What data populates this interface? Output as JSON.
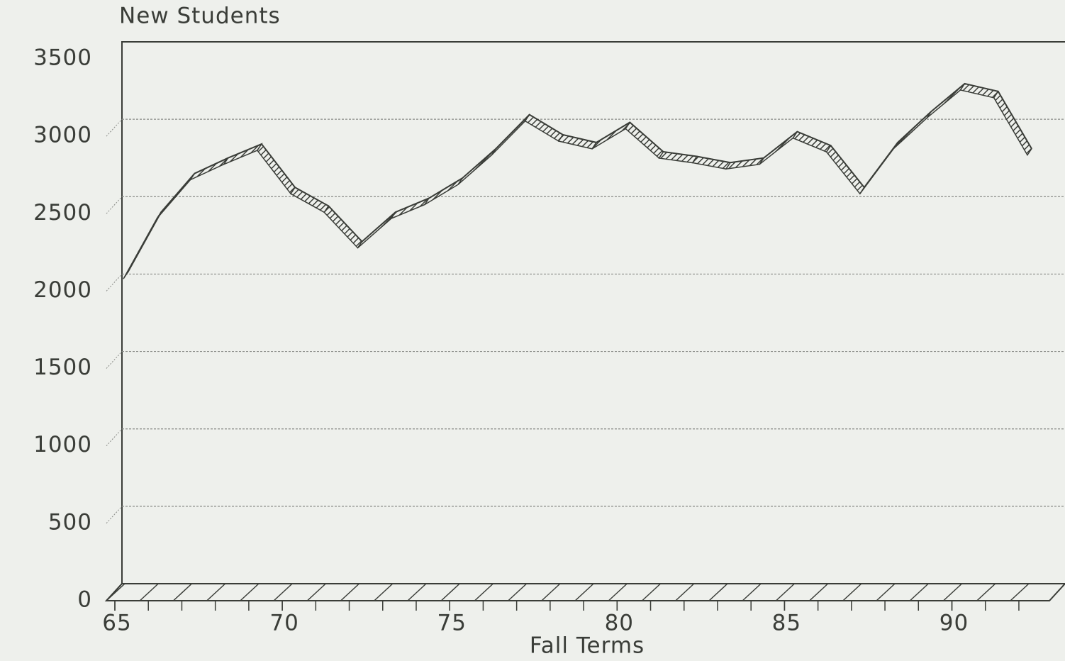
{
  "chart_data": {
    "type": "line",
    "title": "New Students",
    "x_label": "Fall Terms",
    "x": [
      65,
      66,
      67,
      68,
      69,
      70,
      71,
      72,
      73,
      74,
      75,
      76,
      77,
      78,
      79,
      80,
      81,
      82,
      83,
      84,
      85,
      86,
      87,
      88,
      89,
      90,
      91,
      92
    ],
    "series": [
      {
        "name": "New Students",
        "color": "#3a3d38",
        "values": [
          2010,
          2400,
          2650,
          2750,
          2840,
          2560,
          2440,
          2210,
          2400,
          2490,
          2620,
          2810,
          3030,
          2900,
          2850,
          2980,
          2790,
          2760,
          2720,
          2750,
          2920,
          2830,
          2560,
          2850,
          3050,
          3230,
          3180,
          2810
        ]
      }
    ],
    "xlim": [
      65,
      92.7
    ],
    "xticks": [
      65,
      70,
      75,
      80,
      85,
      90
    ],
    "ylim": [
      0,
      3500
    ],
    "yticks": [
      0,
      500,
      1000,
      1500,
      2000,
      2500,
      3000,
      3500
    ],
    "grid": true
  }
}
